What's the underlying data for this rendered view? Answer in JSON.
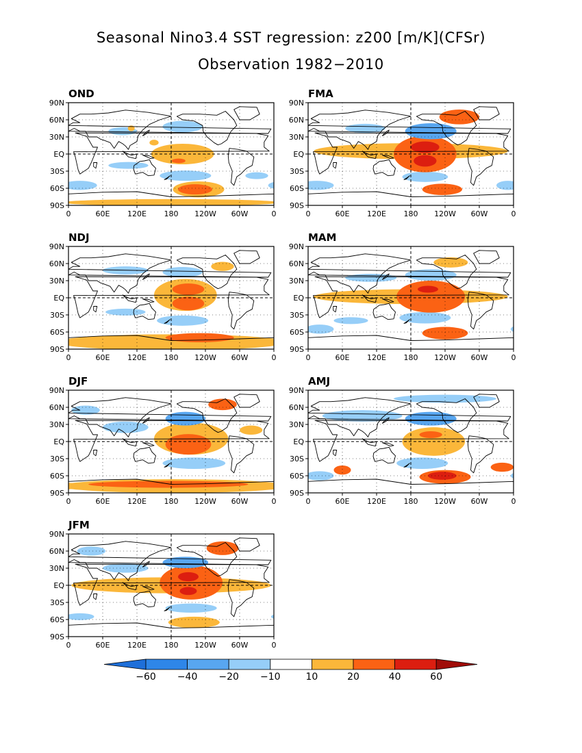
{
  "title": "Seasonal Nino3.4 SST regression: z200 [m/K](CFSr)",
  "subtitle": "Observation 1982−2010",
  "x_ticks": [
    "0",
    "60E",
    "120E",
    "180",
    "120W",
    "60W",
    "0"
  ],
  "y_ticks": [
    "90N",
    "60N",
    "30N",
    "EQ",
    "30S",
    "60S",
    "90S"
  ],
  "colorbar": {
    "labels": [
      "−60",
      "−40",
      "−20",
      "−10",
      "10",
      "20",
      "40",
      "60"
    ],
    "colors": [
      "#1e6fd9",
      "#2e86e8",
      "#58a6f0",
      "#96cef8",
      "#ffffff",
      "#fbb73a",
      "#fb6214",
      "#dc1e10",
      "#a00c08"
    ]
  },
  "panels": [
    {
      "label": "OND",
      "blobs": [
        {
          "lon": 200,
          "lat": 0,
          "rx": 55,
          "ry": 18,
          "lvl": 1
        },
        {
          "lon": 193,
          "lat": -12,
          "rx": 12,
          "ry": 4,
          "lvl": 2
        },
        {
          "lon": 228,
          "lat": -62,
          "rx": 45,
          "ry": 14,
          "lvl": 1
        },
        {
          "lon": 222,
          "lat": -62,
          "rx": 30,
          "ry": 9,
          "lvl": 2
        },
        {
          "lon": 180,
          "lat": -85,
          "rx": 190,
          "ry": 6,
          "lvl": 1
        },
        {
          "lon": 200,
          "lat": 48,
          "rx": 35,
          "ry": 10,
          "lvl": -1
        },
        {
          "lon": 205,
          "lat": -38,
          "rx": 45,
          "ry": 9,
          "lvl": -1
        },
        {
          "lon": 105,
          "lat": -20,
          "rx": 35,
          "ry": 6,
          "lvl": -1
        },
        {
          "lon": 95,
          "lat": 40,
          "rx": 25,
          "ry": 7,
          "lvl": -1
        },
        {
          "lon": 330,
          "lat": -38,
          "rx": 20,
          "ry": 6,
          "lvl": -1
        },
        {
          "lon": 20,
          "lat": -55,
          "rx": 30,
          "ry": 8,
          "lvl": -1
        },
        {
          "lon": 150,
          "lat": 20,
          "rx": 8,
          "ry": 5,
          "lvl": 1
        },
        {
          "lon": 110,
          "lat": 45,
          "rx": 6,
          "ry": 5,
          "lvl": 1
        }
      ]
    },
    {
      "label": "FMA",
      "blobs": [
        {
          "lon": 180,
          "lat": 5,
          "rx": 170,
          "ry": 14,
          "lvl": 1
        },
        {
          "lon": 205,
          "lat": 0,
          "rx": 55,
          "ry": 32,
          "lvl": 2
        },
        {
          "lon": 205,
          "lat": 12,
          "rx": 25,
          "ry": 10,
          "lvl": 3
        },
        {
          "lon": 205,
          "lat": -12,
          "rx": 20,
          "ry": 10,
          "lvl": 3
        },
        {
          "lon": 215,
          "lat": 40,
          "rx": 45,
          "ry": 14,
          "lvl": -2
        },
        {
          "lon": 265,
          "lat": 65,
          "rx": 35,
          "ry": 13,
          "lvl": 2
        },
        {
          "lon": 235,
          "lat": -62,
          "rx": 35,
          "ry": 10,
          "lvl": 2
        },
        {
          "lon": 205,
          "lat": -40,
          "rx": 40,
          "ry": 9,
          "lvl": -1
        },
        {
          "lon": 15,
          "lat": -55,
          "rx": 30,
          "ry": 8,
          "lvl": -1
        },
        {
          "lon": 100,
          "lat": 45,
          "rx": 35,
          "ry": 8,
          "lvl": -1
        },
        {
          "lon": 350,
          "lat": -55,
          "rx": 20,
          "ry": 8,
          "lvl": -1
        }
      ]
    },
    {
      "label": "NDJ",
      "blobs": [
        {
          "lon": 205,
          "lat": 5,
          "rx": 55,
          "ry": 28,
          "lvl": 1
        },
        {
          "lon": 210,
          "lat": 15,
          "rx": 28,
          "ry": 10,
          "lvl": 2
        },
        {
          "lon": 210,
          "lat": -10,
          "rx": 28,
          "ry": 12,
          "lvl": 2
        },
        {
          "lon": 180,
          "lat": -78,
          "rx": 200,
          "ry": 14,
          "lvl": 1
        },
        {
          "lon": 230,
          "lat": -70,
          "rx": 60,
          "ry": 8,
          "lvl": 2
        },
        {
          "lon": 200,
          "lat": -40,
          "rx": 45,
          "ry": 9,
          "lvl": -1
        },
        {
          "lon": 200,
          "lat": 45,
          "rx": 35,
          "ry": 9,
          "lvl": -1
        },
        {
          "lon": 100,
          "lat": 48,
          "rx": 40,
          "ry": 7,
          "lvl": -1
        },
        {
          "lon": 270,
          "lat": 55,
          "rx": 20,
          "ry": 8,
          "lvl": 1
        },
        {
          "lon": 100,
          "lat": -25,
          "rx": 35,
          "ry": 6,
          "lvl": -1
        }
      ]
    },
    {
      "label": "MAM",
      "blobs": [
        {
          "lon": 180,
          "lat": 2,
          "rx": 170,
          "ry": 13,
          "lvl": 1
        },
        {
          "lon": 215,
          "lat": 2,
          "rx": 60,
          "ry": 28,
          "lvl": 2
        },
        {
          "lon": 210,
          "lat": 15,
          "rx": 18,
          "ry": 6,
          "lvl": 3
        },
        {
          "lon": 215,
          "lat": 40,
          "rx": 45,
          "ry": 10,
          "lvl": -1
        },
        {
          "lon": 240,
          "lat": -62,
          "rx": 40,
          "ry": 11,
          "lvl": 2
        },
        {
          "lon": 205,
          "lat": -35,
          "rx": 45,
          "ry": 10,
          "lvl": -1
        },
        {
          "lon": 20,
          "lat": -55,
          "rx": 25,
          "ry": 8,
          "lvl": -1
        },
        {
          "lon": 75,
          "lat": -40,
          "rx": 30,
          "ry": 6,
          "lvl": -1
        },
        {
          "lon": 110,
          "lat": 35,
          "rx": 45,
          "ry": 7,
          "lvl": -1
        },
        {
          "lon": 250,
          "lat": 62,
          "rx": 30,
          "ry": 9,
          "lvl": 1
        }
      ]
    },
    {
      "label": "DJF",
      "blobs": [
        {
          "lon": 215,
          "lat": 5,
          "rx": 65,
          "ry": 28,
          "lvl": 1
        },
        {
          "lon": 210,
          "lat": -5,
          "rx": 40,
          "ry": 18,
          "lvl": 2
        },
        {
          "lon": 205,
          "lat": 40,
          "rx": 35,
          "ry": 12,
          "lvl": -2
        },
        {
          "lon": 185,
          "lat": -78,
          "rx": 200,
          "ry": 12,
          "lvl": 1
        },
        {
          "lon": 175,
          "lat": -75,
          "rx": 140,
          "ry": 6,
          "lvl": 2
        },
        {
          "lon": 270,
          "lat": 65,
          "rx": 25,
          "ry": 10,
          "lvl": 2
        },
        {
          "lon": 220,
          "lat": -38,
          "rx": 55,
          "ry": 10,
          "lvl": -1
        },
        {
          "lon": 100,
          "lat": 25,
          "rx": 40,
          "ry": 10,
          "lvl": -1
        },
        {
          "lon": 30,
          "lat": 55,
          "rx": 25,
          "ry": 8,
          "lvl": -1
        },
        {
          "lon": 320,
          "lat": 20,
          "rx": 20,
          "ry": 8,
          "lvl": 1
        }
      ]
    },
    {
      "label": "AMJ",
      "blobs": [
        {
          "lon": 220,
          "lat": 0,
          "rx": 55,
          "ry": 25,
          "lvl": 1
        },
        {
          "lon": 215,
          "lat": 12,
          "rx": 20,
          "ry": 6,
          "lvl": 2
        },
        {
          "lon": 215,
          "lat": 40,
          "rx": 45,
          "ry": 12,
          "lvl": -2
        },
        {
          "lon": 240,
          "lat": -62,
          "rx": 45,
          "ry": 12,
          "lvl": 2
        },
        {
          "lon": 235,
          "lat": -60,
          "rx": 25,
          "ry": 7,
          "lvl": 3
        },
        {
          "lon": 200,
          "lat": -38,
          "rx": 45,
          "ry": 10,
          "lvl": -1
        },
        {
          "lon": 95,
          "lat": 45,
          "rx": 70,
          "ry": 10,
          "lvl": -1
        },
        {
          "lon": 60,
          "lat": -50,
          "rx": 15,
          "ry": 8,
          "lvl": 2
        },
        {
          "lon": 340,
          "lat": -45,
          "rx": 20,
          "ry": 8,
          "lvl": 2
        },
        {
          "lon": 240,
          "lat": 75,
          "rx": 90,
          "ry": 7,
          "lvl": -1
        },
        {
          "lon": 20,
          "lat": -60,
          "rx": 25,
          "ry": 8,
          "lvl": -1
        }
      ]
    },
    {
      "label": "JFM",
      "blobs": [
        {
          "lon": 180,
          "lat": 0,
          "rx": 175,
          "ry": 14,
          "lvl": 1
        },
        {
          "lon": 215,
          "lat": 5,
          "rx": 55,
          "ry": 30,
          "lvl": 2
        },
        {
          "lon": 210,
          "lat": 15,
          "rx": 18,
          "ry": 8,
          "lvl": 3
        },
        {
          "lon": 210,
          "lat": -10,
          "rx": 15,
          "ry": 7,
          "lvl": 3
        },
        {
          "lon": 205,
          "lat": 40,
          "rx": 40,
          "ry": 10,
          "lvl": -2
        },
        {
          "lon": 270,
          "lat": 65,
          "rx": 28,
          "ry": 12,
          "lvl": 2
        },
        {
          "lon": 220,
          "lat": -65,
          "rx": 45,
          "ry": 10,
          "lvl": 1
        },
        {
          "lon": 215,
          "lat": -40,
          "rx": 45,
          "ry": 8,
          "lvl": -1
        },
        {
          "lon": 100,
          "lat": 30,
          "rx": 40,
          "ry": 8,
          "lvl": -1
        },
        {
          "lon": 40,
          "lat": 60,
          "rx": 25,
          "ry": 8,
          "lvl": -1
        },
        {
          "lon": 20,
          "lat": -55,
          "rx": 25,
          "ry": 6,
          "lvl": -1
        }
      ]
    }
  ]
}
